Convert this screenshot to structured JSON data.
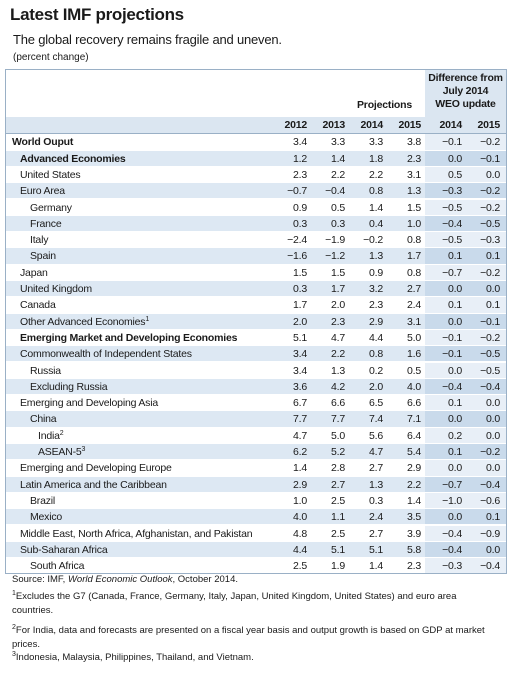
{
  "title": "Latest IMF projections",
  "subtitle": "The global recovery remains fragile and uneven.",
  "unit": "(percent change)",
  "header": {
    "projections": "Projections",
    "difference": [
      "Difference from",
      "July 2014",
      "WEO update"
    ],
    "years": [
      "2012",
      "2013",
      "2014",
      "2015",
      "2014",
      "2015"
    ]
  },
  "table": {
    "rows": [
      {
        "name": "World Ouput",
        "level": 0,
        "bold": true,
        "values": [
          "3.4",
          "3.3",
          "3.3",
          "3.8",
          "−0.1",
          "−0.2"
        ]
      },
      {
        "name": "Advanced Economies",
        "level": 1,
        "bold": true,
        "values": [
          "1.2",
          "1.4",
          "1.8",
          "2.3",
          "0.0",
          "−0.1"
        ]
      },
      {
        "name": "United States",
        "level": 1,
        "values": [
          "2.3",
          "2.2",
          "2.2",
          "3.1",
          "0.5",
          "0.0"
        ]
      },
      {
        "name": "Euro Area",
        "level": 1,
        "values": [
          "−0.7",
          "−0.4",
          "0.8",
          "1.3",
          "−0.3",
          "−0.2"
        ]
      },
      {
        "name": "Germany",
        "level": 2,
        "values": [
          "0.9",
          "0.5",
          "1.4",
          "1.5",
          "−0.5",
          "−0.2"
        ]
      },
      {
        "name": "France",
        "level": 2,
        "values": [
          "0.3",
          "0.3",
          "0.4",
          "1.0",
          "−0.4",
          "−0.5"
        ]
      },
      {
        "name": "Italy",
        "level": 2,
        "values": [
          "−2.4",
          "−1.9",
          "−0.2",
          "0.8",
          "−0.5",
          "−0.3"
        ]
      },
      {
        "name": "Spain",
        "level": 2,
        "values": [
          "−1.6",
          "−1.2",
          "1.3",
          "1.7",
          "0.1",
          "0.1"
        ]
      },
      {
        "name": "Japan",
        "level": 1,
        "values": [
          "1.5",
          "1.5",
          "0.9",
          "0.8",
          "−0.7",
          "−0.2"
        ]
      },
      {
        "name": "United Kingdom",
        "level": 1,
        "values": [
          "0.3",
          "1.7",
          "3.2",
          "2.7",
          "0.0",
          "0.0"
        ]
      },
      {
        "name": "Canada",
        "level": 1,
        "values": [
          "1.7",
          "2.0",
          "2.3",
          "2.4",
          "0.1",
          "0.1"
        ]
      },
      {
        "name": "Other Advanced Economies",
        "note": "1",
        "level": 1,
        "values": [
          "2.0",
          "2.3",
          "2.9",
          "3.1",
          "0.0",
          "−0.1"
        ]
      },
      {
        "name": "Emerging Market and Developing Economies",
        "level": 1,
        "bold": true,
        "values": [
          "5.1",
          "4.7",
          "4.4",
          "5.0",
          "−0.1",
          "−0.2"
        ]
      },
      {
        "name": "Commonwealth of Independent States",
        "level": 1,
        "values": [
          "3.4",
          "2.2",
          "0.8",
          "1.6",
          "−0.1",
          "−0.5"
        ]
      },
      {
        "name": "Russia",
        "level": 2,
        "values": [
          "3.4",
          "1.3",
          "0.2",
          "0.5",
          "0.0",
          "−0.5"
        ]
      },
      {
        "name": "Excluding Russia",
        "level": 2,
        "values": [
          "3.6",
          "4.2",
          "2.0",
          "4.0",
          "−0.4",
          "−0.4"
        ]
      },
      {
        "name": "Emerging and Developing Asia",
        "level": 1,
        "values": [
          "6.7",
          "6.6",
          "6.5",
          "6.6",
          "0.1",
          "0.0"
        ]
      },
      {
        "name": "China",
        "level": 2,
        "values": [
          "7.7",
          "7.7",
          "7.4",
          "7.1",
          "0.0",
          "0.0"
        ]
      },
      {
        "name": "India",
        "note": "2",
        "level": 3,
        "values": [
          "4.7",
          "5.0",
          "5.6",
          "6.4",
          "0.2",
          "0.0"
        ]
      },
      {
        "name": "ASEAN-5",
        "note": "3",
        "level": 3,
        "values": [
          "6.2",
          "5.2",
          "4.7",
          "5.4",
          "0.1",
          "−0.2"
        ]
      },
      {
        "name": "Emerging and Developing Europe",
        "level": 1,
        "values": [
          "1.4",
          "2.8",
          "2.7",
          "2.9",
          "0.0",
          "0.0"
        ]
      },
      {
        "name": "Latin America and the Caribbean",
        "level": 1,
        "values": [
          "2.9",
          "2.7",
          "1.3",
          "2.2",
          "−0.7",
          "−0.4"
        ]
      },
      {
        "name": "Brazil",
        "level": 2,
        "values": [
          "1.0",
          "2.5",
          "0.3",
          "1.4",
          "−1.0",
          "−0.6"
        ]
      },
      {
        "name": "Mexico",
        "level": 2,
        "values": [
          "4.0",
          "1.1",
          "2.4",
          "3.5",
          "0.0",
          "0.1"
        ]
      },
      {
        "name": "Middle East, North Africa, Afghanistan, and Pakistan",
        "level": 1,
        "values": [
          "4.8",
          "2.5",
          "2.7",
          "3.9",
          "−0.4",
          "−0.9"
        ]
      },
      {
        "name": "Sub-Saharan Africa",
        "level": 1,
        "values": [
          "4.4",
          "5.1",
          "5.1",
          "5.8",
          "−0.4",
          "0.0"
        ]
      },
      {
        "name": "South Africa",
        "level": 2,
        "values": [
          "2.5",
          "1.9",
          "1.4",
          "2.3",
          "−0.3",
          "−0.4"
        ]
      }
    ]
  },
  "footnotes": {
    "source": [
      "Source: IMF, ",
      "World Economic Outlook",
      ", October 2014."
    ],
    "notes": [
      {
        "marker": "1",
        "text": "Excludes the G7 (Canada, France, Germany, Italy, Japan, United Kingdom, United States) and euro area countries."
      },
      {
        "marker": "2",
        "text": "For India, data and forecasts are presented on a fiscal year basis and output growth is based on GDP at market prices."
      },
      {
        "marker": "3",
        "text": "Indonesia, Malaysia, Philippines, Thailand, and Vietnam."
      }
    ]
  }
}
